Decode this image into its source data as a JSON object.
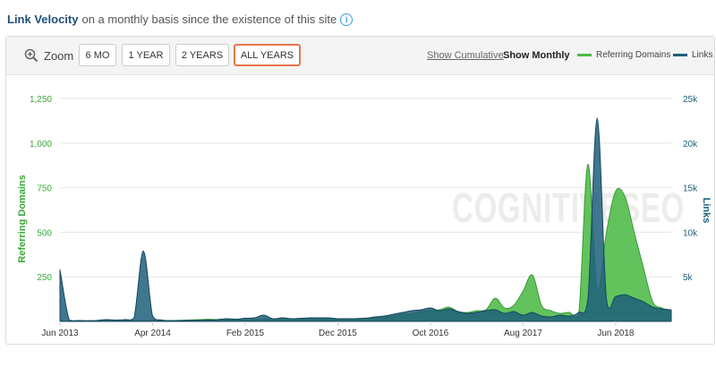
{
  "header": {
    "title": "Link Velocity",
    "subtitle": "on a monthly basis since the existence of this site",
    "info_icon": "info-icon"
  },
  "toolbar": {
    "zoom_label": "Zoom",
    "zoom_icon": "zoom-in-icon",
    "buttons": [
      "6 MO",
      "1 YEAR",
      "2 YEARS",
      "ALL YEARS"
    ],
    "active_button": "ALL YEARS",
    "show_cumulative": "Show Cumulative",
    "show_monthly": "Show Monthly"
  },
  "watermark": "COGNITIVESEO",
  "colors": {
    "referring_domains": "#4cbb47",
    "links": "#1d5f7a",
    "active_border": "#e8754a",
    "left_axis_text": "#3aa83a",
    "right_axis_text": "#1d5f7a"
  },
  "chart_data": {
    "type": "area",
    "x_tick_labels": [
      "Jun 2013",
      "Apr 2014",
      "Feb 2015",
      "Dec 2015",
      "Oct 2016",
      "Aug 2017",
      "Jun 2018"
    ],
    "x_tick_months": [
      0,
      10,
      20,
      30,
      40,
      50,
      60
    ],
    "x_range_months": [
      0,
      66
    ],
    "left_axis": {
      "label": "Referring Domains",
      "ticks": [
        "250",
        "500",
        "750",
        "1,000",
        "1,250"
      ],
      "range": [
        0,
        1250
      ]
    },
    "right_axis": {
      "label": "Links",
      "ticks": [
        "5k",
        "10k",
        "15k",
        "20k",
        "25k"
      ],
      "range": [
        0,
        25000
      ]
    },
    "legend": [
      "Referring Domains",
      "Links"
    ],
    "legend_position": "top-right",
    "grid": true,
    "series": [
      {
        "name": "Referring Domains",
        "axis": "left",
        "x": [
          0,
          1,
          2,
          3,
          4,
          5,
          6,
          7,
          8,
          9,
          10,
          11,
          12,
          13,
          14,
          15,
          16,
          17,
          18,
          19,
          20,
          21,
          22,
          23,
          24,
          25,
          26,
          27,
          28,
          29,
          30,
          31,
          32,
          33,
          34,
          35,
          36,
          37,
          38,
          39,
          40,
          41,
          42,
          43,
          44,
          45,
          46,
          47,
          48,
          49,
          50,
          51,
          52,
          53,
          54,
          55,
          56,
          57,
          58,
          59,
          60,
          61,
          62,
          63,
          64,
          65,
          66
        ],
        "values": [
          3,
          2,
          2,
          3,
          4,
          5,
          6,
          5,
          4,
          4,
          5,
          4,
          5,
          6,
          8,
          10,
          12,
          10,
          9,
          8,
          10,
          12,
          12,
          14,
          14,
          15,
          14,
          14,
          15,
          15,
          14,
          14,
          16,
          18,
          20,
          22,
          30,
          40,
          45,
          55,
          60,
          65,
          80,
          55,
          50,
          60,
          65,
          130,
          75,
          90,
          170,
          260,
          90,
          60,
          45,
          50,
          35,
          880,
          180,
          500,
          730,
          700,
          500,
          300,
          110,
          75,
          55
        ]
      },
      {
        "name": "Links",
        "axis": "right",
        "x": [
          0,
          1,
          2,
          3,
          4,
          5,
          6,
          7,
          8,
          9,
          10,
          11,
          12,
          13,
          14,
          15,
          16,
          17,
          18,
          19,
          20,
          21,
          22,
          23,
          24,
          25,
          26,
          27,
          28,
          29,
          30,
          31,
          32,
          33,
          34,
          35,
          36,
          37,
          38,
          39,
          40,
          41,
          42,
          43,
          44,
          45,
          46,
          47,
          48,
          49,
          50,
          51,
          52,
          53,
          54,
          55,
          56,
          57,
          58,
          59,
          60,
          61,
          62,
          63,
          64,
          65,
          66
        ],
        "values": [
          5800,
          150,
          100,
          80,
          100,
          200,
          150,
          200,
          400,
          7900,
          600,
          150,
          80,
          100,
          100,
          120,
          150,
          200,
          300,
          250,
          350,
          400,
          700,
          300,
          400,
          300,
          350,
          400,
          400,
          400,
          300,
          300,
          300,
          350,
          500,
          600,
          800,
          1000,
          1200,
          1300,
          1500,
          1200,
          1400,
          1100,
          900,
          1000,
          1200,
          1300,
          900,
          1100,
          700,
          1000,
          600,
          500,
          700,
          600,
          1000,
          2500,
          22800,
          2500,
          2800,
          3000,
          2600,
          2200,
          1600,
          1400,
          1300
        ]
      }
    ]
  }
}
